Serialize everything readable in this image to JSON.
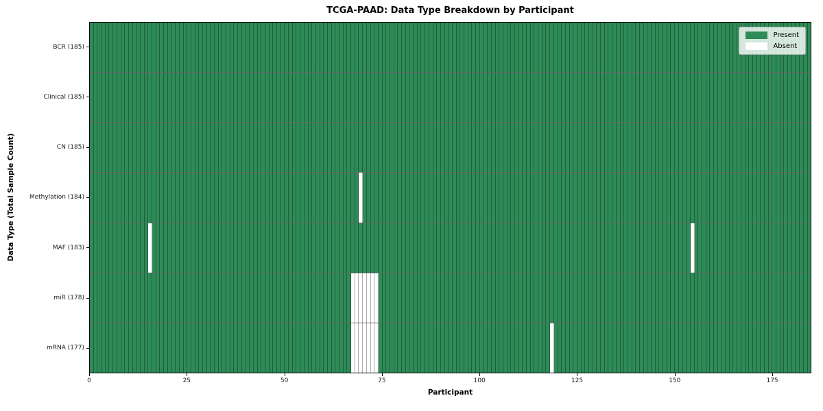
{
  "chart_data": {
    "type": "heatmap",
    "title": "TCGA-PAAD: Data Type Breakdown by Participant",
    "xlabel": "Participant",
    "ylabel": "Data Type (Total Sample Count)",
    "n_participants": 185,
    "x_range": [
      0,
      185
    ],
    "x_ticks": [
      0,
      25,
      50,
      75,
      100,
      125,
      150,
      175
    ],
    "colors": {
      "present": "#2e8b57",
      "absent": "#ffffff"
    },
    "rows": [
      {
        "label": "BCR (185)",
        "data_type": "BCR",
        "total_sample_count": 185,
        "absent_participants": []
      },
      {
        "label": "Clinical (185)",
        "data_type": "Clinical",
        "total_sample_count": 185,
        "absent_participants": []
      },
      {
        "label": "CN (185)",
        "data_type": "CN",
        "total_sample_count": 185,
        "absent_participants": []
      },
      {
        "label": "Methylation (184)",
        "data_type": "Methylation",
        "total_sample_count": 184,
        "absent_participants": [
          69
        ]
      },
      {
        "label": "MAF (183)",
        "data_type": "MAF",
        "total_sample_count": 183,
        "absent_participants": [
          15,
          154
        ]
      },
      {
        "label": "miR (178)",
        "data_type": "miR",
        "total_sample_count": 178,
        "absent_participants": [
          67,
          68,
          69,
          70,
          71,
          72,
          73
        ]
      },
      {
        "label": "mRNA (177)",
        "data_type": "mRNA",
        "total_sample_count": 177,
        "absent_participants": [
          67,
          68,
          69,
          70,
          71,
          72,
          73,
          118
        ]
      }
    ],
    "legend": [
      {
        "label": "Present",
        "color": "#2e8b57"
      },
      {
        "label": "Absent",
        "color": "#ffffff"
      }
    ],
    "legend_position": "upper right",
    "grid": false
  }
}
